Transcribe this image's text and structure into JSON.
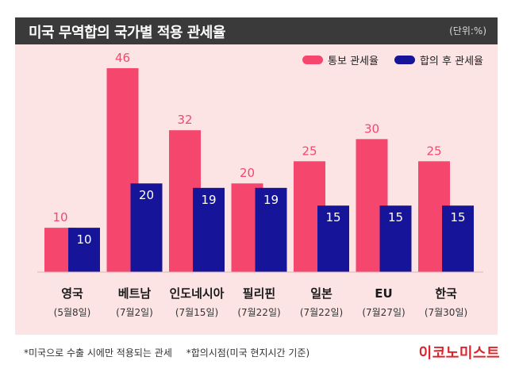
{
  "header": {
    "title": "미국 무역합의 국가별 적용 관세율",
    "unit": "(단위:%)"
  },
  "colors": {
    "notice": "#f5476e",
    "agreed": "#16159a",
    "header_bg": "#3a3a3a",
    "panel_bg": "#fce4e4",
    "brand": "#e0232b"
  },
  "chart_data": {
    "type": "bar",
    "categories": [
      "영국",
      "베트남",
      "인도네시아",
      "필리핀",
      "일본",
      "EU",
      "한국"
    ],
    "dates": [
      "(5월8일)",
      "(7월2일)",
      "(7월15일)",
      "(7월22일)",
      "(7월22일)",
      "(7월27일)",
      "(7월30일)"
    ],
    "series": [
      {
        "name": "통보 관세율",
        "values": [
          10,
          46,
          32,
          20,
          25,
          30,
          25
        ],
        "color": "#f5476e"
      },
      {
        "name": "합의 후 관세율",
        "values": [
          10,
          20,
          19,
          19,
          15,
          15,
          15
        ],
        "color": "#16159a"
      }
    ],
    "ylim": [
      0,
      50
    ],
    "grid": false,
    "legend": "top-right"
  },
  "footnotes": [
    "*미국으로 수출 시에만 적용되는 관세",
    "*합의시점(미국 현지시간 기준)"
  ],
  "brand": "이코노미스트"
}
